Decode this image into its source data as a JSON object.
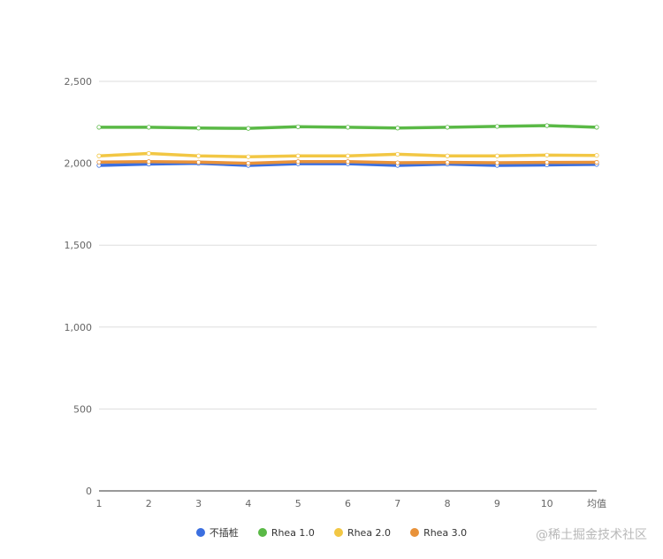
{
  "chart_data": {
    "type": "line",
    "title": "",
    "xlabel": "",
    "ylabel": "",
    "categories": [
      "1",
      "2",
      "3",
      "4",
      "5",
      "6",
      "7",
      "8",
      "9",
      "10",
      "均值"
    ],
    "ylim": [
      0,
      2500
    ],
    "yticks": [
      0,
      500,
      1000,
      1500,
      2000,
      2500
    ],
    "ytick_labels": [
      "0",
      "500",
      "1,000",
      "1,500",
      "2,000",
      "2,500"
    ],
    "grid": true,
    "legend_position": "bottom",
    "series": [
      {
        "name": "不插桩",
        "color": "#3b6fe0",
        "values": [
          1987,
          1995,
          2000,
          1987,
          1997,
          1997,
          1987,
          1995,
          1987,
          1990,
          1993
        ]
      },
      {
        "name": "Rhea 1.0",
        "color": "#5ab946",
        "values": [
          2220,
          2220,
          2215,
          2213,
          2223,
          2220,
          2215,
          2220,
          2225,
          2230,
          2220
        ]
      },
      {
        "name": "Rhea 2.0",
        "color": "#f2c744",
        "values": [
          2045,
          2060,
          2045,
          2040,
          2045,
          2045,
          2055,
          2045,
          2045,
          2050,
          2048
        ]
      },
      {
        "name": "Rhea 3.0",
        "color": "#e8923a",
        "values": [
          2007,
          2010,
          2007,
          2000,
          2010,
          2010,
          2003,
          2005,
          2003,
          2005,
          2006
        ]
      }
    ]
  },
  "watermark": "@稀土掘金技术社区"
}
